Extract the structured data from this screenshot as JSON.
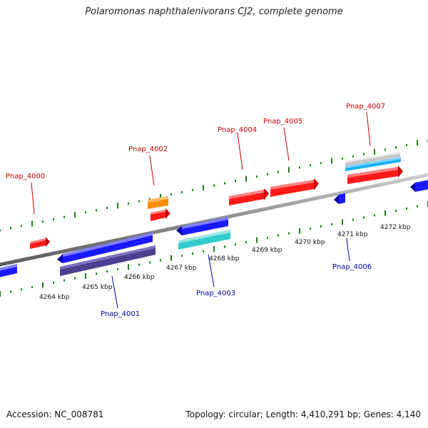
{
  "title": "Polaromonas naphthalenivorans CJ2, complete genome",
  "footer": {
    "accession": "Accession: NC_008781",
    "stats": "Topology: circular; Length: 4,410,291 bp; Genes: 4,140"
  },
  "colors": {
    "backbone": "#8c8c8c",
    "ruler_ticks": "#1a7f1a",
    "forward_label": "#cc0000",
    "reverse_label": "#0000aa",
    "red": "#ff1a1a",
    "orange": "#ff8c00",
    "blue": "#1a1aff",
    "slate": "#4b3f8f",
    "cyan": "#33cccc",
    "skyblue": "#1ab2ff",
    "silver": "#c8c8c8"
  },
  "scale_labels": [
    "4264 kbp",
    "4265 kbp",
    "4266 kbp",
    "4267 kbp",
    "4268 kbp",
    "4269 kbp",
    "4270 kbp",
    "4271 kbp",
    "4272 kbp"
  ],
  "gene_labels": [
    {
      "text": "Pnap_4000",
      "strand": "forward"
    },
    {
      "text": "Pnap_4001",
      "strand": "reverse"
    },
    {
      "text": "Pnap_4002",
      "strand": "forward"
    },
    {
      "text": "Pnap_4003",
      "strand": "reverse"
    },
    {
      "text": "Pnap_4004",
      "strand": "forward"
    },
    {
      "text": "Pnap_4005",
      "strand": "forward"
    },
    {
      "text": "Pnap_4006",
      "strand": "reverse"
    },
    {
      "text": "Pnap_4007",
      "strand": "forward"
    }
  ]
}
